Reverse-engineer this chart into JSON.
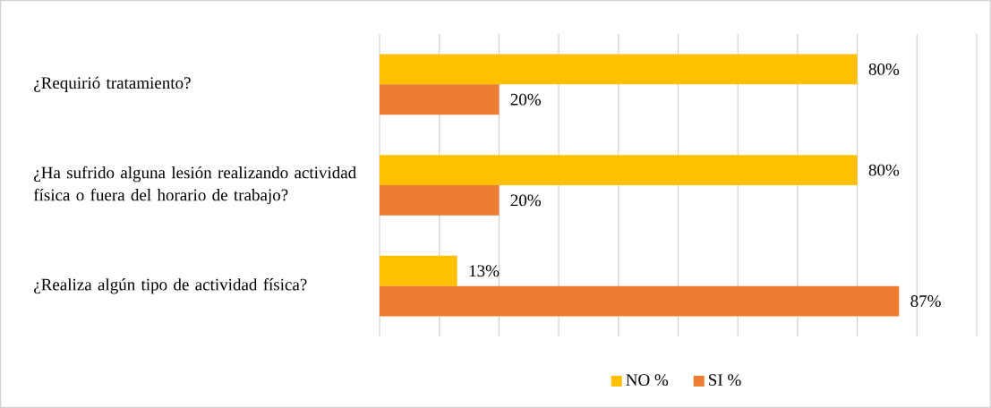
{
  "chart_data": {
    "type": "bar",
    "orientation": "horizontal",
    "categories": [
      "¿Requirió tratamiento?",
      "¿Ha sufrido alguna lesión realizando actividad física o fuera del horario de trabajo?",
      "¿Realiza algún tipo de actividad física?"
    ],
    "series": [
      {
        "name": "NO %",
        "color": "#ffc000",
        "values": [
          80,
          80,
          13
        ],
        "value_labels": [
          "80%",
          "80%",
          "13%"
        ]
      },
      {
        "name": "SI %",
        "color": "#ed7d31",
        "values": [
          20,
          20,
          87
        ],
        "value_labels": [
          "20%",
          "20%",
          "87%"
        ]
      }
    ],
    "xlim": [
      0,
      100
    ],
    "xticks": [
      {
        "value": 0,
        "label": null
      },
      {
        "value": 10,
        "label": null
      },
      {
        "value": 20,
        "label": null
      },
      {
        "value": 30,
        "label": null
      },
      {
        "value": 40,
        "label": null
      },
      {
        "value": 50,
        "label": null
      },
      {
        "value": 60,
        "label": null
      },
      {
        "value": 70,
        "label": null
      },
      {
        "value": 80,
        "label": null
      },
      {
        "value": 90,
        "label": null
      },
      {
        "value": 100,
        "label": null
      }
    ],
    "grid": "x",
    "legend": "bottom",
    "tick_labels": "y"
  }
}
